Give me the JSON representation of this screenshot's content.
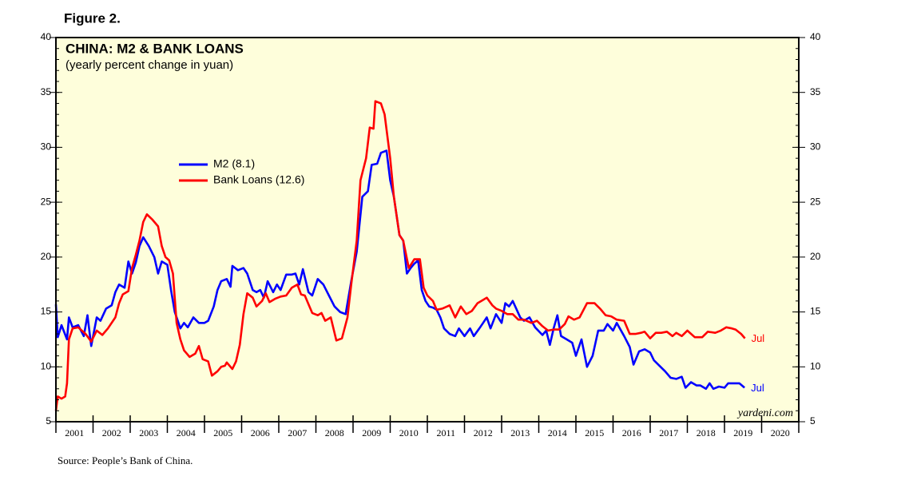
{
  "chart_data": {
    "type": "line",
    "figure_label": "Figure 2.",
    "title": "CHINA: M2 & BANK LOANS",
    "subtitle": "(yearly percent change in yuan)",
    "source": "Source: People’s Bank of China.",
    "watermark": "yardeni.com",
    "xlim": [
      2001,
      2021
    ],
    "xticks": [
      2001,
      2002,
      2003,
      2004,
      2005,
      2006,
      2007,
      2008,
      2009,
      2010,
      2011,
      2012,
      2013,
      2014,
      2015,
      2016,
      2017,
      2018,
      2019,
      2020,
      2021
    ],
    "xlabels": [
      {
        "value": 2001.5,
        "label": "2001"
      },
      {
        "value": 2002.5,
        "label": "2002"
      },
      {
        "value": 2003.5,
        "label": "2003"
      },
      {
        "value": 2004.5,
        "label": "2004"
      },
      {
        "value": 2005.5,
        "label": "2005"
      },
      {
        "value": 2006.5,
        "label": "2006"
      },
      {
        "value": 2007.5,
        "label": "2007"
      },
      {
        "value": 2008.5,
        "label": "2008"
      },
      {
        "value": 2009.5,
        "label": "2009"
      },
      {
        "value": 2010.5,
        "label": "2010"
      },
      {
        "value": 2011.5,
        "label": "2011"
      },
      {
        "value": 2012.5,
        "label": "2012"
      },
      {
        "value": 2013.5,
        "label": "2013"
      },
      {
        "value": 2014.5,
        "label": "2014"
      },
      {
        "value": 2015.5,
        "label": "2015"
      },
      {
        "value": 2016.5,
        "label": "2016"
      },
      {
        "value": 2017.5,
        "label": "2017"
      },
      {
        "value": 2018.5,
        "label": "2018"
      },
      {
        "value": 2019.5,
        "label": "2019"
      },
      {
        "value": 2020.5,
        "label": "2020"
      }
    ],
    "ylim": [
      5,
      40
    ],
    "yticks": [
      5,
      10,
      15,
      20,
      25,
      30,
      35,
      40
    ],
    "background": "#fefedb",
    "series": [
      {
        "name": "M2 (8.1)",
        "color": "#0000ff",
        "end_label": "Jul",
        "x": [
          2001.0,
          2001.05,
          2001.15,
          2001.3,
          2001.35,
          2001.45,
          2001.6,
          2001.75,
          2001.85,
          2001.95,
          2002.1,
          2002.2,
          2002.35,
          2002.5,
          2002.6,
          2002.7,
          2002.85,
          2002.95,
          2003.05,
          2003.15,
          2003.25,
          2003.35,
          2003.5,
          2003.65,
          2003.75,
          2003.85,
          2004.0,
          2004.1,
          2004.2,
          2004.35,
          2004.45,
          2004.55,
          2004.7,
          2004.85,
          2005.0,
          2005.1,
          2005.25,
          2005.35,
          2005.45,
          2005.6,
          2005.7,
          2005.75,
          2005.9,
          2006.05,
          2006.15,
          2006.3,
          2006.4,
          2006.5,
          2006.6,
          2006.7,
          2006.85,
          2006.95,
          2007.05,
          2007.2,
          2007.35,
          2007.45,
          2007.55,
          2007.65,
          2007.8,
          2007.9,
          2008.05,
          2008.2,
          2008.35,
          2008.5,
          2008.65,
          2008.8,
          2008.95,
          2009.1,
          2009.25,
          2009.4,
          2009.5,
          2009.65,
          2009.75,
          2009.9,
          2010.0,
          2010.1,
          2010.25,
          2010.35,
          2010.45,
          2010.55,
          2010.65,
          2010.75,
          2010.85,
          2010.95,
          2011.05,
          2011.15,
          2011.25,
          2011.35,
          2011.45,
          2011.6,
          2011.75,
          2011.85,
          2012.0,
          2012.15,
          2012.25,
          2012.4,
          2012.5,
          2012.6,
          2012.7,
          2012.85,
          2013.0,
          2013.1,
          2013.2,
          2013.3,
          2013.5,
          2013.6,
          2013.75,
          2013.9,
          2014.1,
          2014.2,
          2014.3,
          2014.4,
          2014.5,
          2014.6,
          2014.75,
          2014.9,
          2015.0,
          2015.15,
          2015.3,
          2015.45,
          2015.6,
          2015.75,
          2015.85,
          2016.0,
          2016.1,
          2016.3,
          2016.45,
          2016.55,
          2016.7,
          2016.85,
          2017.0,
          2017.1,
          2017.25,
          2017.4,
          2017.55,
          2017.7,
          2017.85,
          2017.95,
          2018.1,
          2018.25,
          2018.35,
          2018.5,
          2018.6,
          2018.7,
          2018.85,
          2019.0,
          2019.1,
          2019.25,
          2019.4,
          2019.54
        ],
        "values": [
          15.7,
          12.7,
          13.8,
          12.5,
          14.5,
          13.6,
          13.8,
          12.8,
          14.7,
          11.9,
          14.5,
          14.2,
          15.3,
          15.6,
          16.8,
          17.5,
          17.2,
          19.6,
          18.5,
          19.5,
          21,
          21.8,
          21,
          20,
          18.5,
          19.6,
          19.3,
          17,
          15,
          13.5,
          14,
          13.6,
          14.5,
          14,
          14,
          14.2,
          15.5,
          17,
          17.8,
          18,
          17.3,
          19.2,
          18.8,
          19,
          18.5,
          17,
          16.8,
          17,
          16.3,
          17.8,
          16.8,
          17.5,
          17,
          18.4,
          18.4,
          18.5,
          17.5,
          18.9,
          16.8,
          16.5,
          18,
          17.5,
          16.5,
          15.5,
          15,
          14.8,
          17.8,
          20.5,
          25.5,
          26,
          28.4,
          28.5,
          29.5,
          29.7,
          27,
          25.5,
          22,
          21.5,
          18.5,
          19,
          19.4,
          19.7,
          17,
          16,
          15.5,
          15.4,
          15.2,
          14.5,
          13.5,
          13,
          12.8,
          13.5,
          12.8,
          13.5,
          12.8,
          13.5,
          14,
          14.5,
          13.5,
          14.8,
          14,
          15.8,
          15.5,
          16,
          14.5,
          14.2,
          14.5,
          13.6,
          12.9,
          13.3,
          12,
          13.5,
          14.7,
          12.8,
          12.5,
          12.2,
          11,
          12.5,
          10,
          11,
          13.3,
          13.3,
          13.9,
          13.3,
          14,
          12.8,
          11.8,
          10.2,
          11.4,
          11.6,
          11.3,
          10.6,
          10.1,
          9.6,
          9,
          8.9,
          9.1,
          8.1,
          8.6,
          8.3,
          8.3,
          8,
          8.5,
          8,
          8.2,
          8.1,
          8.5,
          8.5,
          8.5,
          8.1
        ]
      },
      {
        "name": "Bank Loans (12.6)",
        "color": "#ff0000",
        "end_label": "Jul",
        "x": [
          2001.0,
          2001.05,
          2001.15,
          2001.25,
          2001.3,
          2001.35,
          2001.45,
          2001.6,
          2001.8,
          2001.95,
          2002.1,
          2002.25,
          2002.4,
          2002.6,
          2002.7,
          2002.8,
          2002.95,
          2003.05,
          2003.15,
          2003.25,
          2003.35,
          2003.45,
          2003.6,
          2003.75,
          2003.85,
          2003.95,
          2004.05,
          2004.15,
          2004.25,
          2004.35,
          2004.45,
          2004.6,
          2004.75,
          2004.85,
          2004.95,
          2005.1,
          2005.2,
          2005.35,
          2005.45,
          2005.55,
          2005.6,
          2005.75,
          2005.85,
          2005.95,
          2006.05,
          2006.15,
          2006.3,
          2006.4,
          2006.55,
          2006.65,
          2006.75,
          2006.9,
          2007.05,
          2007.2,
          2007.35,
          2007.5,
          2007.6,
          2007.7,
          2007.9,
          2008.05,
          2008.15,
          2008.25,
          2008.4,
          2008.55,
          2008.7,
          2008.85,
          2008.95,
          2009.1,
          2009.2,
          2009.35,
          2009.45,
          2009.55,
          2009.6,
          2009.75,
          2009.85,
          2010.0,
          2010.1,
          2010.25,
          2010.35,
          2010.5,
          2010.65,
          2010.8,
          2010.9,
          2011.0,
          2011.15,
          2011.25,
          2011.4,
          2011.6,
          2011.75,
          2011.9,
          2012.05,
          2012.2,
          2012.35,
          2012.5,
          2012.6,
          2012.75,
          2012.85,
          2013.0,
          2013.15,
          2013.3,
          2013.45,
          2013.6,
          2013.8,
          2013.95,
          2014.1,
          2014.25,
          2014.4,
          2014.55,
          2014.7,
          2014.8,
          2014.95,
          2015.1,
          2015.3,
          2015.5,
          2015.65,
          2015.8,
          2015.95,
          2016.1,
          2016.3,
          2016.45,
          2016.6,
          2016.75,
          2016.85,
          2017.0,
          2017.15,
          2017.3,
          2017.45,
          2017.6,
          2017.7,
          2017.85,
          2018.0,
          2018.2,
          2018.4,
          2018.55,
          2018.75,
          2018.9,
          2019.05,
          2019.2,
          2019.3,
          2019.45,
          2019.55
        ],
        "values": [
          6,
          7.3,
          7.1,
          7.3,
          8.5,
          12.5,
          13.5,
          13.6,
          13,
          12.3,
          13.3,
          12.9,
          13.5,
          14.5,
          15.8,
          16.6,
          16.9,
          19,
          20.2,
          21.5,
          23.2,
          23.9,
          23.4,
          22.8,
          21,
          20,
          19.7,
          18.5,
          14,
          12.5,
          11.5,
          10.9,
          11.2,
          11.9,
          10.7,
          10.5,
          9.2,
          9.6,
          10,
          10.1,
          10.4,
          9.8,
          10.5,
          12,
          14.8,
          16.7,
          16.3,
          15.5,
          16,
          16.7,
          15.9,
          16.2,
          16.4,
          16.5,
          17.2,
          17.5,
          16.6,
          16.5,
          14.9,
          14.7,
          14.9,
          14.2,
          14.5,
          12.4,
          12.6,
          14.5,
          17.5,
          21.5,
          27,
          29,
          31.8,
          31.7,
          34.2,
          34,
          33,
          29,
          25.5,
          22,
          21.5,
          19,
          19.8,
          19.8,
          17.2,
          16.5,
          16,
          15.2,
          15.3,
          15.6,
          14.5,
          15.5,
          14.8,
          15.1,
          15.8,
          16.1,
          16.3,
          15.6,
          15.3,
          15.1,
          14.8,
          14.8,
          14.3,
          14.3,
          14,
          14.2,
          13.7,
          13.3,
          13.4,
          13.4,
          13.9,
          14.6,
          14.3,
          14.5,
          15.8,
          15.8,
          15.3,
          14.7,
          14.6,
          14.3,
          14.2,
          13,
          13,
          13.1,
          13.2,
          12.6,
          13.1,
          13.1,
          13.2,
          12.8,
          13.1,
          12.8,
          13.3,
          12.7,
          12.7,
          13.2,
          13.1,
          13.3,
          13.6,
          13.5,
          13.4,
          13,
          12.6
        ]
      }
    ]
  }
}
